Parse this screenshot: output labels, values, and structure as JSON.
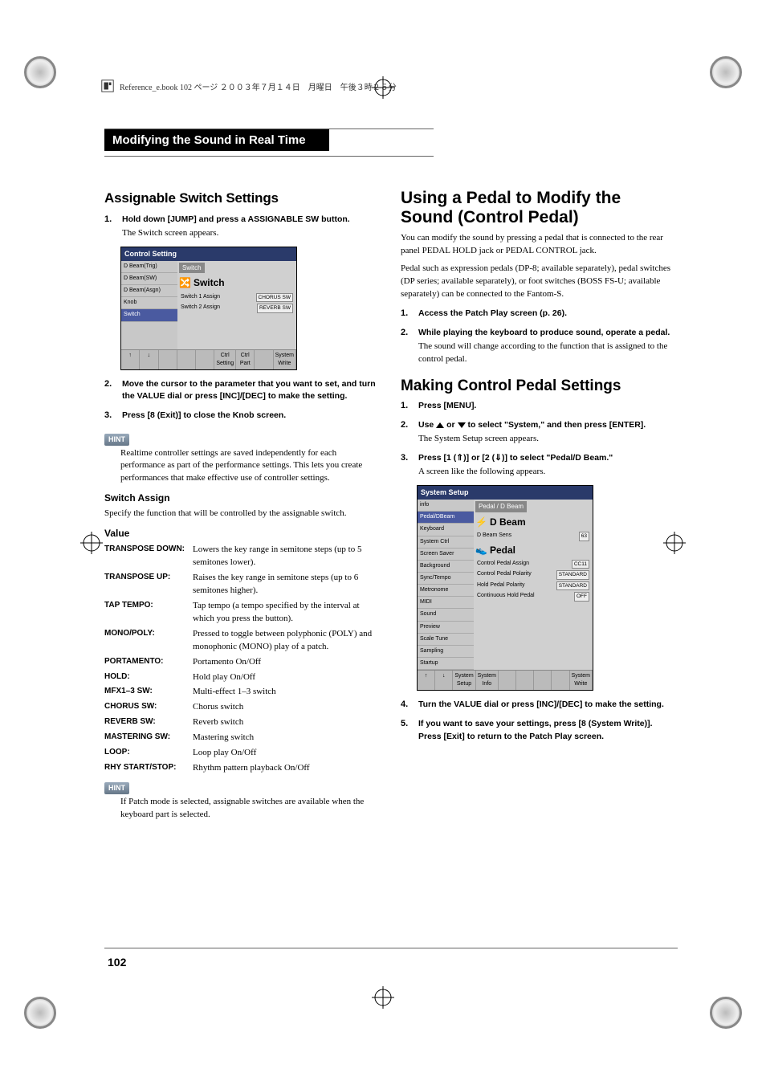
{
  "page_header": "Reference_e.book  102 ページ  ２００３年７月１４日　月曜日　午後３時２５分",
  "page_title": "Modifying the Sound in Real Time",
  "page_number": "102",
  "left": {
    "h2": "Assignable Switch Settings",
    "step1_bold": "Hold down [JUMP] and press a ASSIGNABLE SW button.",
    "step1_plain": "The Switch screen appears.",
    "step2_bold": "Move the cursor to the parameter that you want to set, and turn the VALUE dial or press [INC]/[DEC] to make the setting.",
    "step3_bold": "Press [8 (Exit)] to close the Knob screen.",
    "hint_label": "HINT",
    "hint1": "Realtime controller settings are saved independently for each performance as part of the performance settings. This lets you create performances that make effective use of controller settings.",
    "switch_assign_h": "Switch Assign",
    "switch_assign_desc": "Specify the function that will be controlled by the assignable switch.",
    "value_h": "Value",
    "params": [
      {
        "label": "TRANSPOSE DOWN:",
        "desc": "Lowers the key range in semitone steps (up to 5 semitones lower)."
      },
      {
        "label": "TRANSPOSE UP:",
        "desc": "Raises the key range in semitone steps (up to 6 semitones higher)."
      },
      {
        "label": "TAP TEMPO:",
        "desc": "Tap tempo (a tempo specified by the interval at which you press the button)."
      },
      {
        "label": "MONO/POLY:",
        "desc": "Pressed to toggle between polyphonic (POLY) and monophonic (MONO) play of a patch."
      },
      {
        "label": "PORTAMENTO:",
        "desc": "Portamento On/Off"
      },
      {
        "label": "HOLD:",
        "desc": "Hold play On/Off"
      },
      {
        "label": "MFX1–3 SW:",
        "desc": "Multi-effect 1–3 switch"
      },
      {
        "label": "CHORUS SW:",
        "desc": "Chorus switch"
      },
      {
        "label": "REVERB SW:",
        "desc": "Reverb switch"
      },
      {
        "label": "MASTERING SW:",
        "desc": "Mastering switch"
      },
      {
        "label": "LOOP:",
        "desc": "Loop play On/Off"
      },
      {
        "label": "RHY START/STOP:",
        "desc": "Rhythm pattern playback On/Off"
      }
    ],
    "hint2": "If Patch mode is selected, assignable switches are available when the keyboard part is selected.",
    "screenshot1": {
      "title": "Control Setting",
      "side": [
        "D Beam(Trig)",
        "D Beam(SW)",
        "D Beam(Asgn)",
        "Knob",
        "Switch"
      ],
      "side_selected": 4,
      "tab": "Switch",
      "heading": "Switch",
      "rows": [
        {
          "label": "Switch 1 Assign",
          "val": "CHORUS SW"
        },
        {
          "label": "Switch 2 Assign",
          "val": "REVERB SW"
        }
      ],
      "footer": [
        "↑",
        "↓",
        "",
        "",
        "",
        "Ctrl Setting",
        "Ctrl Part",
        "",
        "System Write"
      ]
    }
  },
  "right": {
    "h2a": "Using a Pedal to Modify the Sound (Control Pedal)",
    "intro1": "You can modify the sound by pressing a pedal that is connected to the rear panel PEDAL HOLD jack or PEDAL CONTROL jack.",
    "intro2": "Pedal such as expression pedals (DP-8; available separately), pedal switches (DP series; available separately), or foot switches (BOSS FS-U; available separately) can be connected to the Fantom-S.",
    "step1_bold": "Access the Patch Play screen (p. 26).",
    "step2_bold": "While playing the keyboard to produce sound, operate a pedal.",
    "step2_plain": "The sound will change according to the function that is assigned to the control pedal.",
    "h2b": "Making Control Pedal Settings",
    "b_step1_bold": "Press [MENU].",
    "b_step2_pre": "Use ",
    "b_step2_mid": " or ",
    "b_step2_post": " to select \"System,\" and then press [ENTER].",
    "b_step2_plain": "The System Setup screen appears.",
    "b_step3_bold": "Press [1 (⇑)] or [2 (⇓)] to select \"Pedal/D Beam.\"",
    "b_step3_plain": "A screen like the following appears.",
    "b_step4_bold": "Turn the VALUE dial or press [INC]/[DEC] to make the setting.",
    "b_step5_bold": "If you want to save your settings, press [8 (System Write)]. Press [Exit] to return to the Patch Play screen.",
    "screenshot2": {
      "title": "System Setup",
      "side": [
        "info",
        "Pedal/DBeam",
        "Keyboard",
        "System Ctrl",
        "Screen Saver",
        "Background",
        "Sync/Tempo",
        "Metronome",
        "MIDI",
        "Sound",
        "Preview",
        "Scale Tune",
        "Sampling",
        "Startup"
      ],
      "side_selected": 1,
      "tab": "Pedal / D Beam",
      "heading1": "D Beam",
      "row1": {
        "label": "D Beam Sens",
        "val": "63"
      },
      "heading2": "Pedal",
      "rows": [
        {
          "label": "Control Pedal Assign",
          "val": "CC11"
        },
        {
          "label": "Control Pedal Polarity",
          "val": "STANDARD"
        },
        {
          "label": "Hold Pedal Polarity",
          "val": "STANDARD"
        },
        {
          "label": "Continuous Hold Pedal",
          "val": "OFF"
        }
      ],
      "footer": [
        "↑",
        "↓",
        "System Setup",
        "System Info",
        "",
        "",
        "",
        "",
        "System Write"
      ]
    }
  }
}
